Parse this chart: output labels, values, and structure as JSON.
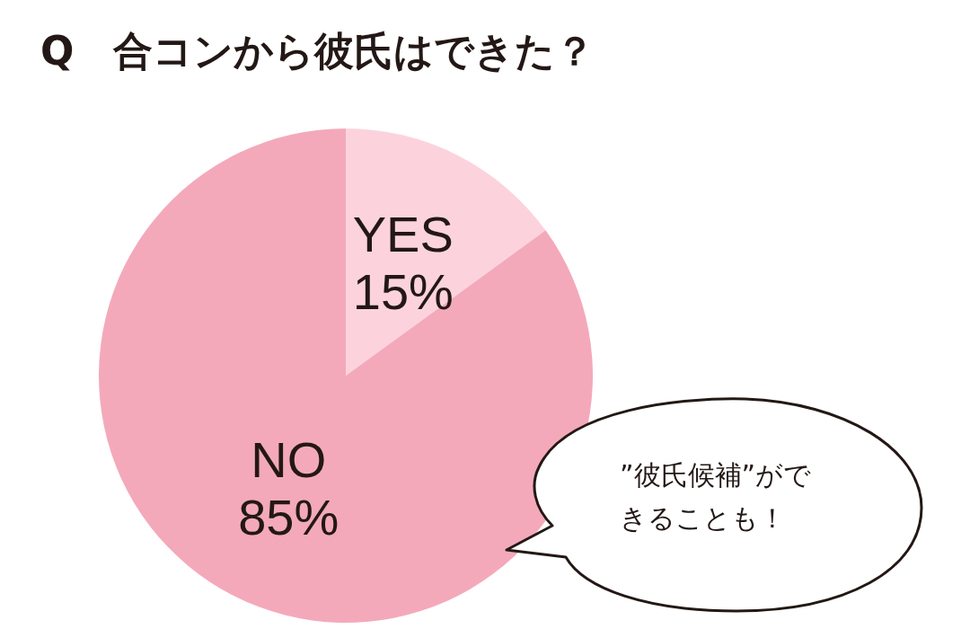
{
  "chart_data": {
    "type": "pie",
    "title": "Q　合コンから彼氏はできた？",
    "categories": [
      "YES",
      "NO"
    ],
    "values": [
      15,
      85
    ],
    "colors": [
      "#fcd3dd",
      "#f4a9bb"
    ],
    "value_labels": [
      "15%",
      "85%"
    ],
    "legend": false,
    "annotations": [
      "”彼氏候補”ができることも！"
    ]
  }
}
